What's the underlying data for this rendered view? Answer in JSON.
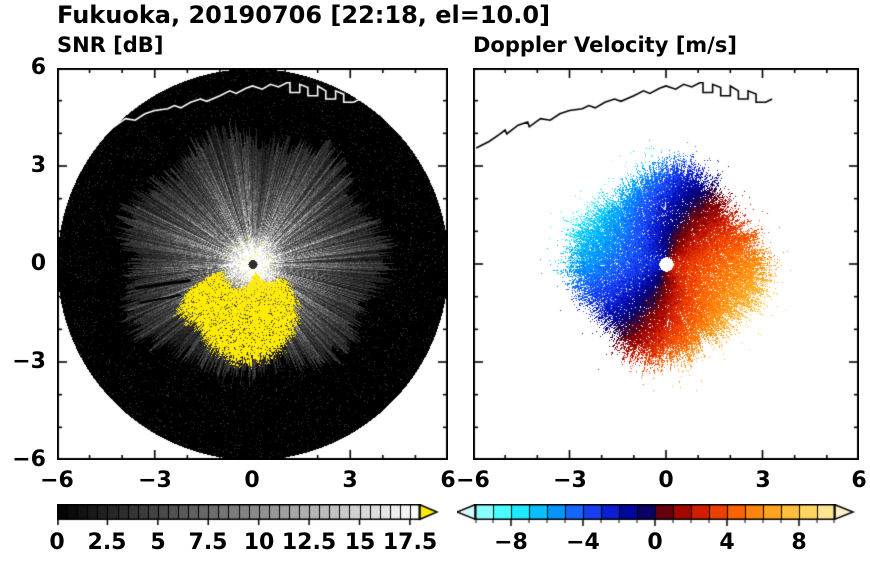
{
  "header": {
    "title": "Fukuoka, 20190706 [22:18, el=10.0]"
  },
  "panels": {
    "snr": {
      "title": "SNR [dB]",
      "xticks": [
        "−6",
        "−3",
        "0",
        "3",
        "6"
      ],
      "yticks": [
        "6",
        "3",
        "0",
        "−3",
        "−6"
      ],
      "cbar_ticks": [
        "0",
        "2.5",
        "5",
        "7.5",
        "10",
        "12.5",
        "15",
        "17.5"
      ]
    },
    "velocity": {
      "title": "Doppler Velocity [m/s]",
      "xticks": [
        "−6",
        "−3",
        "0",
        "3",
        "6"
      ],
      "cbar_ticks": [
        "−8",
        "−4",
        "0",
        "4",
        "8"
      ]
    }
  },
  "coastline_km": [
    [
      -5.9,
      3.55
    ],
    [
      -5.5,
      3.75
    ],
    [
      -5.2,
      3.95
    ],
    [
      -5.0,
      4.1
    ],
    [
      -4.95,
      3.98
    ],
    [
      -4.6,
      4.25
    ],
    [
      -4.3,
      4.35
    ],
    [
      -4.25,
      4.2
    ],
    [
      -3.9,
      4.45
    ],
    [
      -3.6,
      4.4
    ],
    [
      -3.3,
      4.6
    ],
    [
      -3.0,
      4.7
    ],
    [
      -2.6,
      4.75
    ],
    [
      -2.4,
      4.85
    ],
    [
      -2.2,
      4.78
    ],
    [
      -1.9,
      4.95
    ],
    [
      -1.6,
      5.05
    ],
    [
      -1.4,
      4.98
    ],
    [
      -1.0,
      5.15
    ],
    [
      -0.7,
      5.3
    ],
    [
      -0.5,
      5.22
    ],
    [
      -0.2,
      5.38
    ],
    [
      0.0,
      5.45
    ],
    [
      0.3,
      5.35
    ],
    [
      0.55,
      5.5
    ],
    [
      0.8,
      5.42
    ],
    [
      1.05,
      5.55
    ],
    [
      1.15,
      5.55
    ],
    [
      1.15,
      5.25
    ],
    [
      1.45,
      5.25
    ],
    [
      1.45,
      5.5
    ],
    [
      1.7,
      5.4
    ],
    [
      1.7,
      5.15
    ],
    [
      2.0,
      5.15
    ],
    [
      2.0,
      5.45
    ],
    [
      2.25,
      5.3
    ],
    [
      2.25,
      5.05
    ],
    [
      2.55,
      5.05
    ],
    [
      2.55,
      5.3
    ],
    [
      2.8,
      5.2
    ],
    [
      2.8,
      4.95
    ],
    [
      3.1,
      4.95
    ],
    [
      3.3,
      5.05
    ]
  ],
  "chart_data": [
    {
      "type": "heatmap",
      "panel": "left",
      "suptitle": "Fukuoka, 20190706 [22:18, el=10.0]",
      "station": "Fukuoka",
      "date": "20190706",
      "time": "22:18",
      "elevation_deg": 10.0,
      "title": "SNR [dB]",
      "xlim_km": [
        -6,
        6
      ],
      "ylim_km": [
        -6,
        6
      ],
      "x_ticks": [
        -6,
        -3,
        0,
        3,
        6
      ],
      "y_ticks": [
        -6,
        -3,
        0,
        3,
        6
      ],
      "colorbar": {
        "min": 0,
        "max": 18,
        "tick_values": [
          0,
          2.5,
          5,
          7.5,
          10,
          12.5,
          15,
          17.5
        ],
        "colormap": "grayscale black-to-white",
        "over_color": "#ffeb00"
      },
      "features": {
        "scan_disc_radius_km": 6,
        "echo_max_radius_km": 4.2,
        "saturated_lobe": {
          "color": "#ffeb00",
          "screen_azimuth_deg": [
            25,
            167
          ],
          "radius_km": [
            0.3,
            3.3
          ],
          "note": "saturated high-SNR (>17.5 dB) echo lobe south of the radar"
        },
        "center_dot_radius_km": 0.15,
        "coastline_color": "#ffffff",
        "description": "Radar PPI of SNR: black 6-km coverage disc, speckled gray echo brightest near the radar fading out by ~4 km, yellow saturated lobe to the south, white coastline along the top, dark blockage streaks to the west."
      }
    },
    {
      "type": "heatmap",
      "panel": "right",
      "title": "Doppler Velocity [m/s]",
      "xlim_km": [
        -6,
        6
      ],
      "ylim_km": [
        -6,
        6
      ],
      "x_ticks": [
        -6,
        -3,
        0,
        3,
        6
      ],
      "y_ticks": [
        -6,
        -3,
        0,
        3,
        6
      ],
      "colorbar": {
        "min": -10,
        "max": 10,
        "tick_values": [
          -8,
          -4,
          0,
          4,
          8
        ],
        "colormap": "cyan-blue-dark navy (approaching) / dark red-orange-pale orange (receding)",
        "stops": [
          [
            -10,
            170,
            255,
            255
          ],
          [
            -8,
            40,
            255,
            255
          ],
          [
            -6,
            0,
            170,
            255
          ],
          [
            -4,
            30,
            80,
            255
          ],
          [
            -2.5,
            10,
            30,
            210
          ],
          [
            -1.2,
            0,
            0,
            140
          ],
          [
            -0.15,
            20,
            0,
            80
          ],
          [
            0.15,
            80,
            0,
            20
          ],
          [
            1.2,
            150,
            0,
            0
          ],
          [
            2.5,
            210,
            30,
            0
          ],
          [
            4,
            250,
            80,
            0
          ],
          [
            6,
            255,
            150,
            20
          ],
          [
            8,
            255,
            205,
            70
          ],
          [
            10,
            255,
            235,
            170
          ]
        ]
      },
      "features": {
        "echo_radius_km": 3.4,
        "approaching_side": "west-northwest, blue, up to about -8 m/s",
        "receding_side": "east-southeast, orange-red, up to about +8 m/s",
        "inferred_flow": "roughly westerly flow across the radar",
        "center_gap_color": "#ffffff",
        "coastline_color": "#000000",
        "description": "Doppler velocity PPI: dipole of approaching (blue) flow on the west/northwest side and receding (red-orange) flow on the east/southeast side out to ~3.5 km, spiral zero-isodop, white data gap at the radar, black coastline along the top."
      }
    }
  ]
}
